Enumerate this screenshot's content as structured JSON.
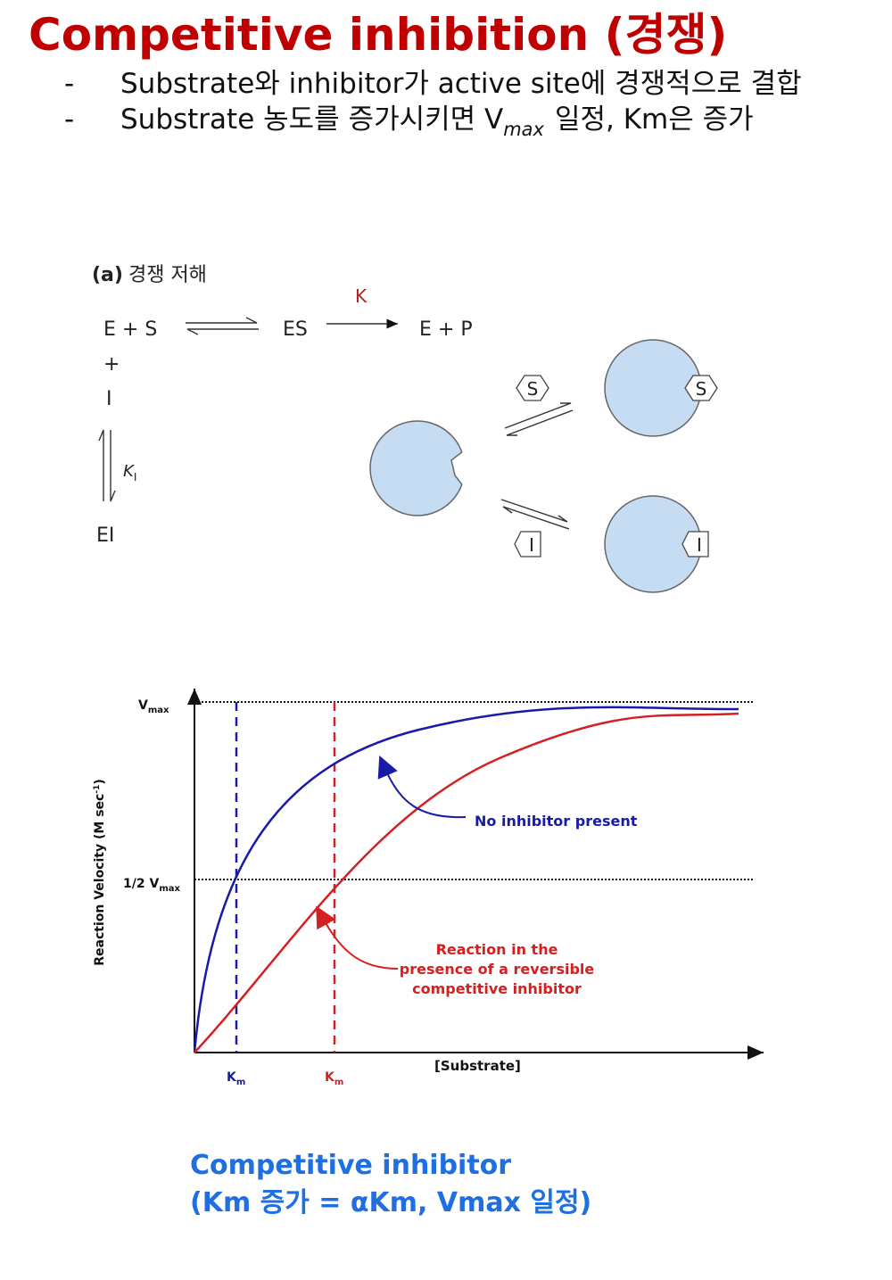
{
  "header": {
    "title": "Competitive inhibition (경쟁)"
  },
  "bullets": [
    {
      "marker": "-",
      "text": "Substrate와 inhibitor가 active site에 경쟁적으로 결합"
    },
    {
      "marker": "-",
      "text": "Substrate 농도를 증가시키면 V",
      "subscript": "max",
      "text_after": "일정, Km은 증가"
    }
  ],
  "diagram": {
    "label_prefix": "(a)",
    "label": "경쟁 저해",
    "reactant": "E + S",
    "complex": "ES",
    "rate_constant": "K",
    "product": "E + P",
    "plus": "+",
    "inhibitor": "I",
    "ki_symbol": "K",
    "ki_subscript": "I",
    "inhibitor_complex": "EI",
    "substrate_shape": "S",
    "inhibitor_shape": "I"
  },
  "chart": {
    "vmax_symbol": "V",
    "vmax_subscript": "max",
    "half_vmax": "1/2 V",
    "y_axis_label": "Reaction Velocity (M sec",
    "y_axis_superscript": "-1",
    "y_axis_label_end": ")",
    "x_axis_label": "[Substrate]",
    "km_symbol": "K",
    "km_subscript": "m",
    "annotation_no_inhibitor": "No inhibitor present",
    "annotation_inhibitor": [
      "Reaction in the",
      "presence of a reversible",
      "competitive inhibitor"
    ]
  },
  "caption": [
    "Competitive inhibitor",
    "(Km 증가 = αKm, Vmax 일정)"
  ]
}
